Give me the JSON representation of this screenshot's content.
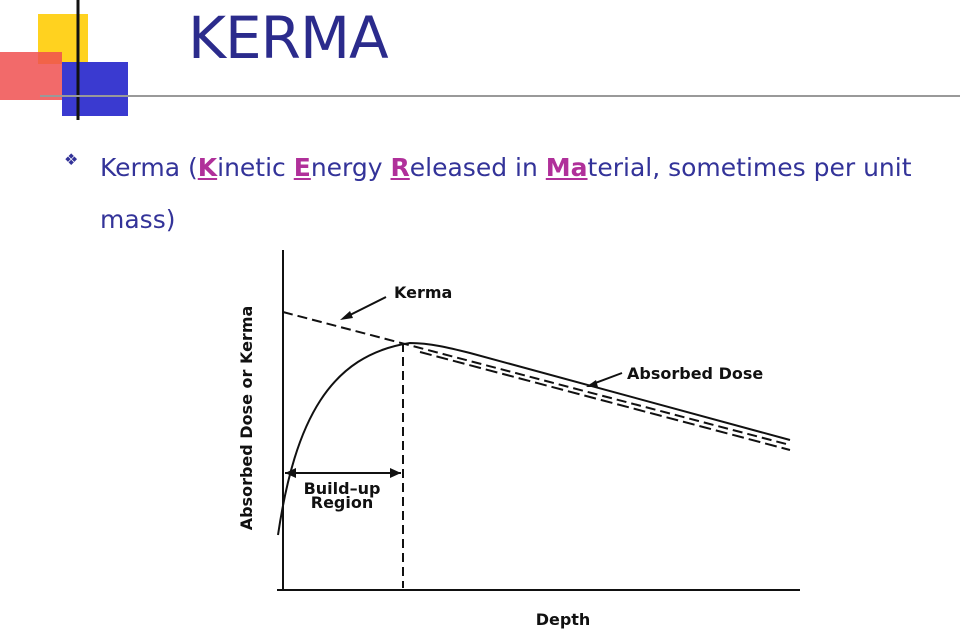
{
  "title": "KERMA",
  "bullet": {
    "parts": [
      {
        "text": "Kerma (",
        "highlight": false
      },
      {
        "text": "K",
        "highlight": true
      },
      {
        "text": "inetic ",
        "highlight": false
      },
      {
        "text": "E",
        "highlight": true
      },
      {
        "text": "nergy ",
        "highlight": false
      },
      {
        "text": "R",
        "highlight": true
      },
      {
        "text": "eleased in ",
        "highlight": false
      },
      {
        "text": "Ma",
        "highlight": true
      },
      {
        "text": "terial, sometimes per unit mass)",
        "highlight": false
      }
    ]
  },
  "diagram": {
    "kerma_label": "Kerma",
    "dose_label": "Absorbed Dose",
    "buildup_label": [
      "Build–up",
      "Region"
    ],
    "y_axis_label": "Absorbed Dose or Kerma",
    "x_axis_label": "Depth"
  }
}
